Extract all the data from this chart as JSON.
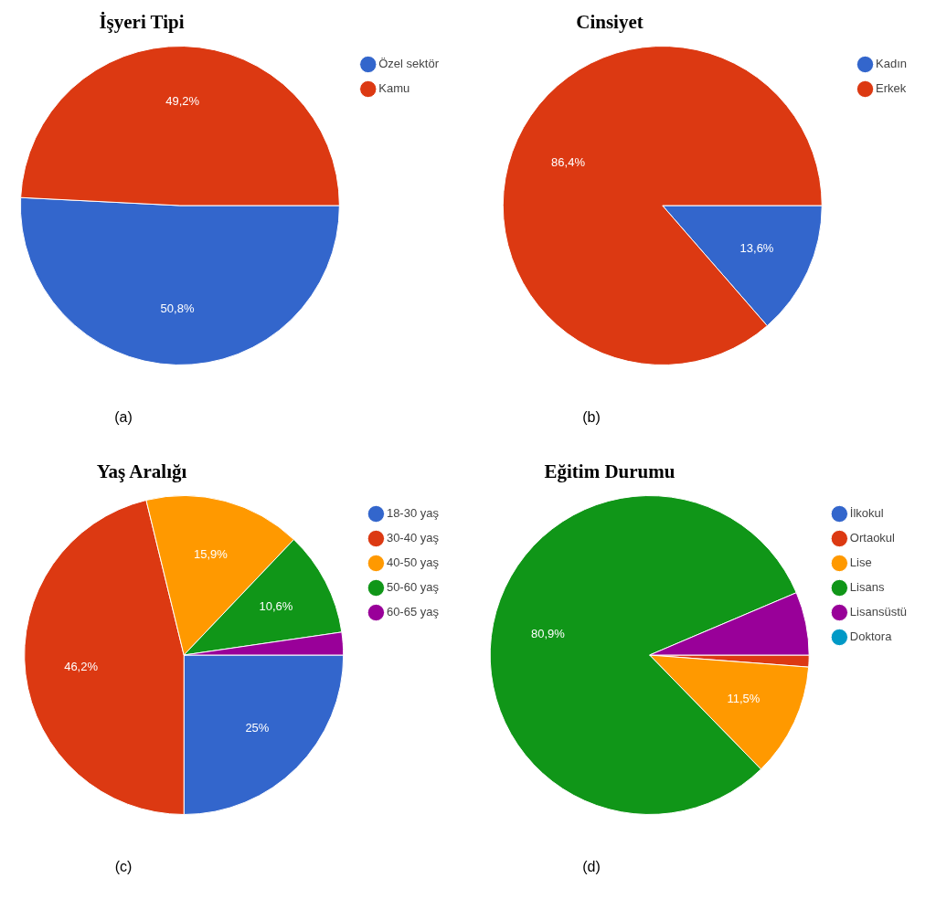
{
  "chart_data": [
    {
      "type": "pie",
      "title": "İşyeri Tipi",
      "categories": [
        "Özel sektör",
        "Kamu"
      ],
      "values": [
        50.8,
        49.2
      ],
      "colors": [
        "#3366cc",
        "#dc3912"
      ],
      "value_labels": [
        "50,8%",
        "49,2%"
      ],
      "legend": "right",
      "annotations": [
        "(a)"
      ]
    },
    {
      "type": "pie",
      "title": "Cinsiyet",
      "categories": [
        "Kadın",
        "Erkek"
      ],
      "values": [
        13.6,
        86.4
      ],
      "colors": [
        "#3366cc",
        "#dc3912"
      ],
      "value_labels": [
        "13,6%",
        "86,4%"
      ],
      "legend": "right",
      "annotations": [
        "(b)"
      ]
    },
    {
      "type": "pie",
      "title": "Yaş Aralığı",
      "categories": [
        "18-30 yaş",
        "30-40 yaş",
        "40-50 yaş",
        "50-60 yaş",
        "60-65 yaş"
      ],
      "values": [
        25,
        46.2,
        15.9,
        10.6,
        2.3
      ],
      "colors": [
        "#3366cc",
        "#dc3912",
        "#ff9900",
        "#109618",
        "#990099"
      ],
      "value_labels": [
        "25%",
        "46,2%",
        "15,9%",
        "10,6%",
        null
      ],
      "legend": "right",
      "annotations": [
        "(c)"
      ]
    },
    {
      "type": "pie",
      "title": "Eğitim Durumu",
      "categories": [
        "İlkokul",
        "Ortaokul",
        "Lise",
        "Lisans",
        "Lisansüstü",
        "Doktora"
      ],
      "values": [
        0,
        1.2,
        11.5,
        80.9,
        6.4,
        0
      ],
      "colors": [
        "#3366cc",
        "#dc3912",
        "#ff9900",
        "#109618",
        "#990099",
        "#0099c6"
      ],
      "value_labels": [
        null,
        null,
        "11,5%",
        "80,9%",
        null,
        null
      ],
      "legend": "right",
      "annotations": [
        "(d)"
      ]
    }
  ]
}
